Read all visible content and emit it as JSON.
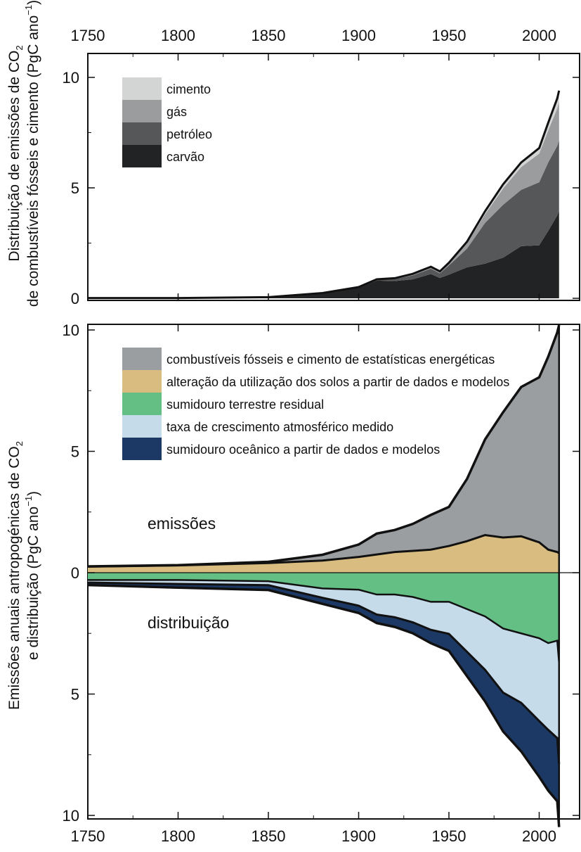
{
  "chart_data": [
    {
      "type": "area",
      "stacked": true,
      "xlim": [
        1750,
        2012
      ],
      "ylim": [
        0,
        10
      ],
      "x_ticks": [
        "1750",
        "1800",
        "1850",
        "1900",
        "1950",
        "2000"
      ],
      "y_ticks": [
        "0",
        "5",
        "10"
      ],
      "ylabel_line1": "Distribuição de emissões de CO",
      "ylabel_line1_sub": "2",
      "ylabel_line2": "de combustíveis fósseis e cimento (PgC ano",
      "ylabel_line2_sup": "−1",
      "ylabel_line2_end": ")",
      "legend_position": "top-left",
      "x": [
        1750,
        1800,
        1850,
        1880,
        1900,
        1910,
        1920,
        1930,
        1940,
        1945,
        1950,
        1960,
        1970,
        1980,
        1990,
        2000,
        2005,
        2010,
        2011
      ],
      "series": [
        {
          "name": "carvão",
          "color": "#222324",
          "values": [
            0.01,
            0.01,
            0.05,
            0.24,
            0.48,
            0.8,
            0.78,
            0.86,
            1.1,
            0.92,
            1.07,
            1.4,
            1.57,
            1.84,
            2.36,
            2.4,
            3.05,
            3.75,
            3.95
          ]
        },
        {
          "name": "petróleo",
          "color": "#555759",
          "values": [
            0,
            0,
            0,
            0,
            0.02,
            0.04,
            0.09,
            0.18,
            0.24,
            0.21,
            0.42,
            0.85,
            1.84,
            2.39,
            2.55,
            2.85,
            3.1,
            3.15,
            3.2
          ]
        },
        {
          "name": "gás",
          "color": "#9a9c9e",
          "values": [
            0,
            0,
            0,
            0,
            0.01,
            0.02,
            0.03,
            0.05,
            0.07,
            0.08,
            0.1,
            0.23,
            0.39,
            0.74,
            1.03,
            1.3,
            1.45,
            1.7,
            1.75
          ]
        },
        {
          "name": "cimento",
          "color": "#d3d4d4",
          "values": [
            0,
            0,
            0,
            0,
            0,
            0,
            0.01,
            0.02,
            0.02,
            0.01,
            0.02,
            0.08,
            0.14,
            0.19,
            0.21,
            0.25,
            0.35,
            0.45,
            0.5
          ]
        }
      ],
      "total": [
        0.01,
        0.01,
        0.05,
        0.24,
        0.51,
        0.86,
        0.91,
        1.11,
        1.43,
        1.22,
        1.61,
        2.56,
        3.94,
        5.16,
        6.15,
        6.8,
        7.95,
        9.05,
        9.4
      ]
    },
    {
      "type": "area",
      "xlim": [
        1750,
        2012
      ],
      "ylim": [
        -10,
        10
      ],
      "x_ticks": [
        "1750",
        "1800",
        "1850",
        "1900",
        "1950",
        "2000"
      ],
      "y_ticks_pos": [
        "0",
        "5",
        "10"
      ],
      "y_ticks_neg": [
        "5",
        "10"
      ],
      "ylabel_line1": "Emissões anuais antropogénicas de CO",
      "ylabel_line1_sub": "2",
      "ylabel_line2": "e distribuição (PgC ano",
      "ylabel_line2_sup": "−1",
      "ylabel_line2_end": ")",
      "annotations": {
        "upper": "emissões",
        "lower": "distribuição"
      },
      "legend_position": "top-left",
      "legend": [
        {
          "label": "combustíveis fósseis e cimento de estatísticas energéticas",
          "color": "#9b9ea1"
        },
        {
          "label": "alteração da utilização dos solos a partir de dados e modelos",
          "color": "#d9bd80"
        },
        {
          "label": "sumidouro terrestre residual",
          "color": "#64bf85"
        },
        {
          "label": "taxa de crescimento atmosférico medido",
          "color": "#c6dbea"
        },
        {
          "label": "sumidouro oceânico a partir de dados e modelos",
          "color": "#1c3966"
        }
      ],
      "x": [
        1750,
        1800,
        1850,
        1880,
        1900,
        1910,
        1920,
        1930,
        1940,
        1950,
        1960,
        1970,
        1980,
        1990,
        2000,
        2005,
        2010,
        2011
      ],
      "land_use_emissions": [
        0.25,
        0.3,
        0.4,
        0.5,
        0.65,
        0.75,
        0.85,
        0.9,
        0.95,
        1.1,
        1.3,
        1.55,
        1.45,
        1.5,
        1.25,
        0.95,
        0.85,
        0.8
      ],
      "total_emissions": [
        0.26,
        0.31,
        0.45,
        0.74,
        1.16,
        1.61,
        1.76,
        2.01,
        2.38,
        2.71,
        3.86,
        5.49,
        6.61,
        7.65,
        8.05,
        8.9,
        9.9,
        10.2
      ],
      "ocean_sink": [
        0.1,
        0.15,
        0.2,
        0.25,
        0.3,
        0.35,
        0.4,
        0.45,
        0.55,
        0.7,
        1.0,
        1.3,
        1.6,
        2.0,
        2.3,
        2.5,
        2.6,
        2.6
      ],
      "atmospheric_growth": [
        0.2,
        0.3,
        0.3,
        0.7,
        1.2,
        1.5,
        1.7,
        1.9,
        2.1,
        2.4,
        3.2,
        4.0,
        4.8,
        5.2,
        6.2,
        6.5,
        7.3,
        7.6
      ],
      "land_sink_top": [
        0.3,
        0.3,
        0.35,
        0.65,
        0.7,
        0.9,
        0.9,
        1.0,
        1.2,
        1.2,
        1.5,
        1.8,
        2.3,
        2.5,
        2.7,
        2.9,
        2.8,
        3.7
      ]
    }
  ]
}
